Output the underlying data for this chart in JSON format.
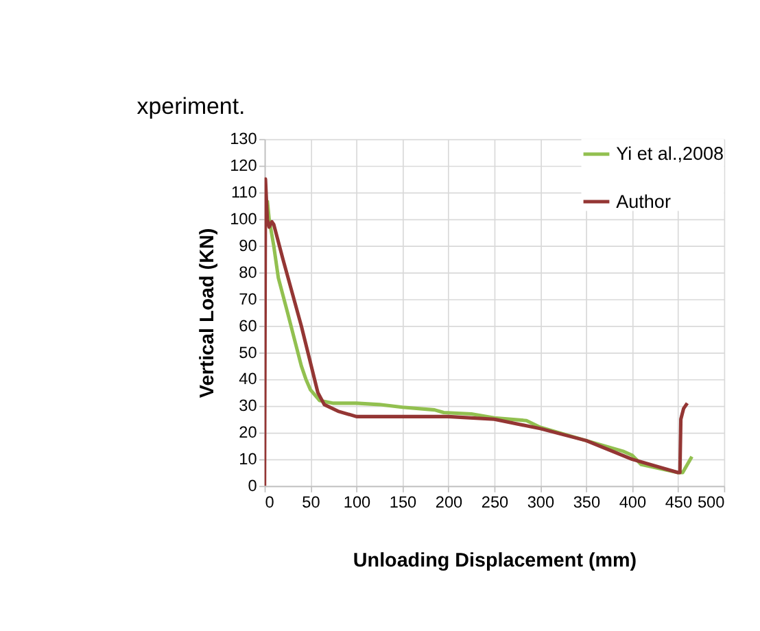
{
  "chart_data": {
    "type": "line",
    "xlabel": "Unloading Displacement (mm)",
    "ylabel": "Vertical Load (KN)",
    "annotations": [
      "xperiment."
    ],
    "xlim": [
      0,
      500
    ],
    "xticks": [
      0,
      50,
      100,
      150,
      200,
      250,
      300,
      350,
      400,
      450,
      500
    ],
    "ylim": [
      0,
      130
    ],
    "yticks": [
      0,
      10,
      20,
      30,
      40,
      50,
      60,
      70,
      80,
      90,
      100,
      110,
      120,
      130
    ],
    "grid": true,
    "legend": "top right",
    "marker": "none",
    "line_style": "solid",
    "series": [
      {
        "name": "Yi et al.,2008",
        "color": "#92c050",
        "x": [
          3,
          5,
          10,
          15,
          25,
          40,
          45,
          50,
          60,
          75,
          100,
          125,
          150,
          185,
          195,
          225,
          250,
          285,
          300,
          350,
          390,
          400,
          410,
          450,
          455,
          465
        ],
        "values": [
          107,
          100,
          90,
          78,
          65,
          45,
          40,
          36,
          32,
          31,
          31,
          30.5,
          29.5,
          28.5,
          27.5,
          27,
          25.5,
          24.5,
          22,
          17,
          13,
          11.5,
          8,
          5,
          5,
          11
        ]
      },
      {
        "name": "Author",
        "color": "#943634",
        "x": [
          0,
          1,
          3,
          5,
          8,
          10,
          20,
          40,
          58,
          65,
          80,
          100,
          150,
          200,
          250,
          300,
          350,
          400,
          450,
          452,
          453,
          456,
          460
        ],
        "values": [
          0,
          115,
          100,
          97,
          99,
          98,
          85,
          60,
          35,
          30.5,
          28,
          26,
          26,
          26,
          25,
          21.5,
          17,
          10,
          5,
          5,
          25,
          29,
          31
        ]
      }
    ]
  }
}
